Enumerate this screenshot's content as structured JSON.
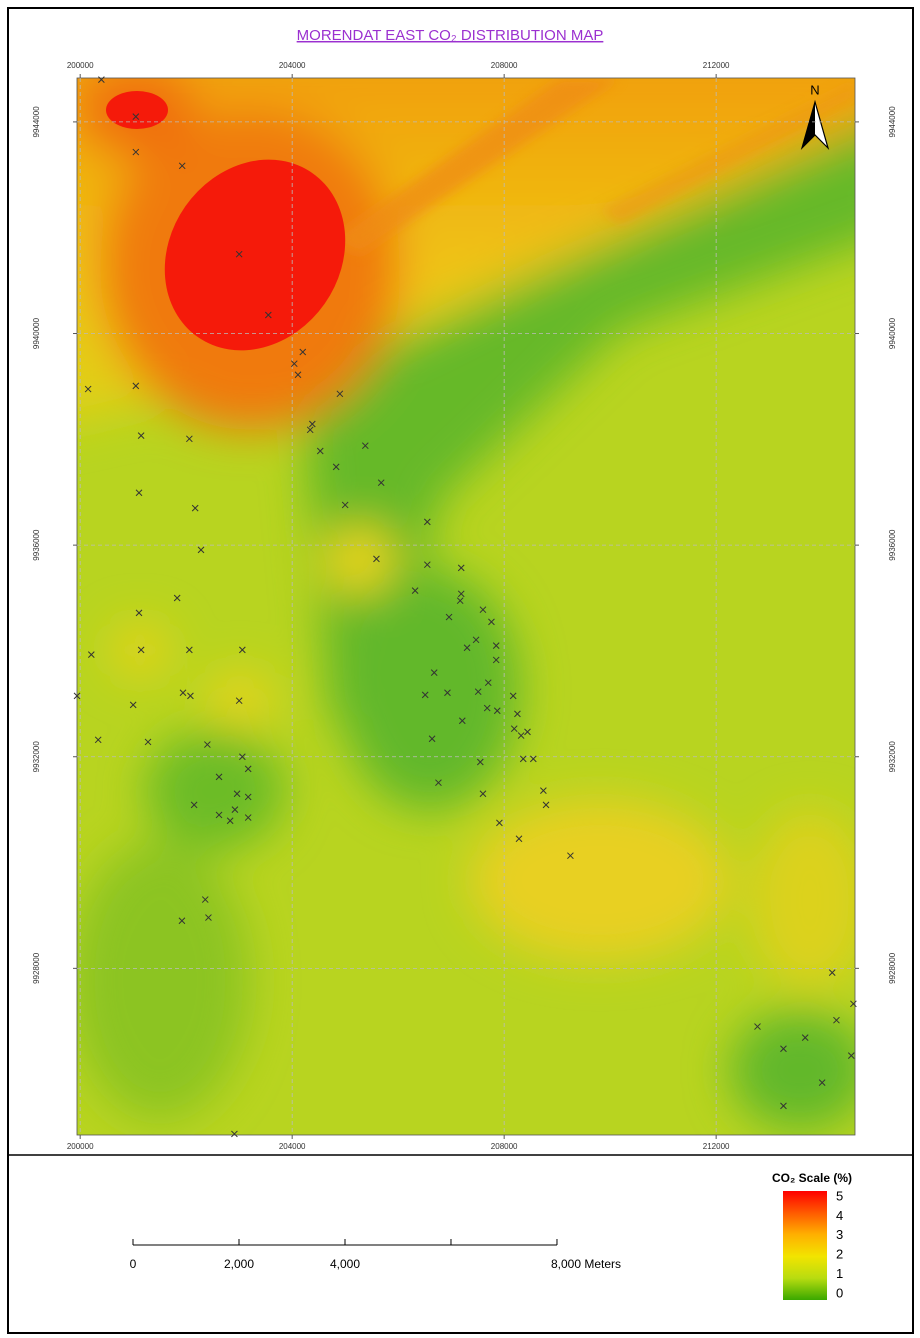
{
  "chart_data": {
    "type": "map",
    "title": "MORENDAT EAST CO₂ DISTRIBUTION MAP",
    "title_color": "#9b30d0",
    "xlim": [
      199940,
      214620
    ],
    "ylim": [
      9924850,
      9944830
    ],
    "xticks": [
      200000,
      204000,
      208000,
      212000
    ],
    "yticks": [
      9928000,
      9932000,
      9936000,
      9940000,
      9944000
    ],
    "grid": true,
    "samples": {
      "color": "#333333",
      "easting": [
        200400,
        201050,
        201050,
        201925,
        203000,
        203550,
        204200,
        204040,
        204110,
        200150,
        201050,
        204900,
        201150,
        202060,
        204380,
        204340,
        204530,
        204830,
        205380,
        205680,
        201110,
        202170,
        205000,
        206550,
        202280,
        205590,
        206550,
        207190,
        206320,
        207190,
        207170,
        201830,
        201110,
        206960,
        207600,
        207760,
        207470,
        207300,
        207850,
        200210,
        201150,
        202060,
        203060,
        207850,
        206680,
        207700,
        199940,
        201940,
        202080,
        203000,
        206510,
        206930,
        207510,
        208170,
        201000,
        207680,
        207870,
        208250,
        207210,
        208190,
        208440,
        208320,
        200340,
        201280,
        206640,
        202400,
        203060,
        208360,
        208550,
        207550,
        203170,
        202620,
        202960,
        203170,
        207600,
        208740,
        208790,
        202150,
        202920,
        206760,
        202620,
        203170,
        202830,
        207910,
        208280,
        209250,
        202360,
        202420,
        201920,
        214190,
        214590,
        212780,
        214270,
        213270,
        213680,
        214550,
        214000,
        213270,
        202910
      ],
      "northing": [
        9944800,
        9944100,
        9943430,
        9943170,
        9941500,
        9940350,
        9939650,
        9939430,
        9939220,
        9938950,
        9939010,
        9938860,
        9938070,
        9938010,
        9938290,
        9938180,
        9937780,
        9937480,
        9937880,
        9937180,
        9936990,
        9936700,
        9936760,
        9936440,
        9935910,
        9935740,
        9935630,
        9935570,
        9935140,
        9935080,
        9934950,
        9935000,
        9934720,
        9934640,
        9934780,
        9934550,
        9934210,
        9934060,
        9934100,
        9933930,
        9934020,
        9934020,
        9934020,
        9933830,
        9933590,
        9933400,
        9933150,
        9933210,
        9933150,
        9933060,
        9933170,
        9933210,
        9933230,
        9933150,
        9932980,
        9932920,
        9932870,
        9932810,
        9932680,
        9932530,
        9932470,
        9932400,
        9932320,
        9932280,
        9932340,
        9932230,
        9932000,
        9931960,
        9931960,
        9931900,
        9931770,
        9931620,
        9931300,
        9931240,
        9931300,
        9931360,
        9931090,
        9931090,
        9931000,
        9931510,
        9930900,
        9930850,
        9930790,
        9930750,
        9930450,
        9930130,
        9929300,
        9928960,
        9928900,
        9927920,
        9927330,
        9926900,
        9927020,
        9926480,
        9926690,
        9926350,
        9925840,
        9925400,
        9924870
      ]
    },
    "north_label": "N",
    "scale_bar": {
      "ticks": [
        {
          "value": 0,
          "label": "0"
        },
        {
          "value": 2000,
          "label": "2,000"
        },
        {
          "value": 4000,
          "label": "4,000"
        },
        {
          "value": 8000,
          "label": "8,000 Meters"
        }
      ]
    },
    "colorbar": {
      "title": "CO₂ Scale (%)",
      "lim": [
        0,
        5
      ],
      "ticks": [
        0,
        1,
        2,
        3,
        4,
        5
      ],
      "colors": [
        "#3aa800",
        "#b8dc10",
        "#f2e400",
        "#ffb000",
        "#ff5a00",
        "#ff0000"
      ]
    }
  }
}
